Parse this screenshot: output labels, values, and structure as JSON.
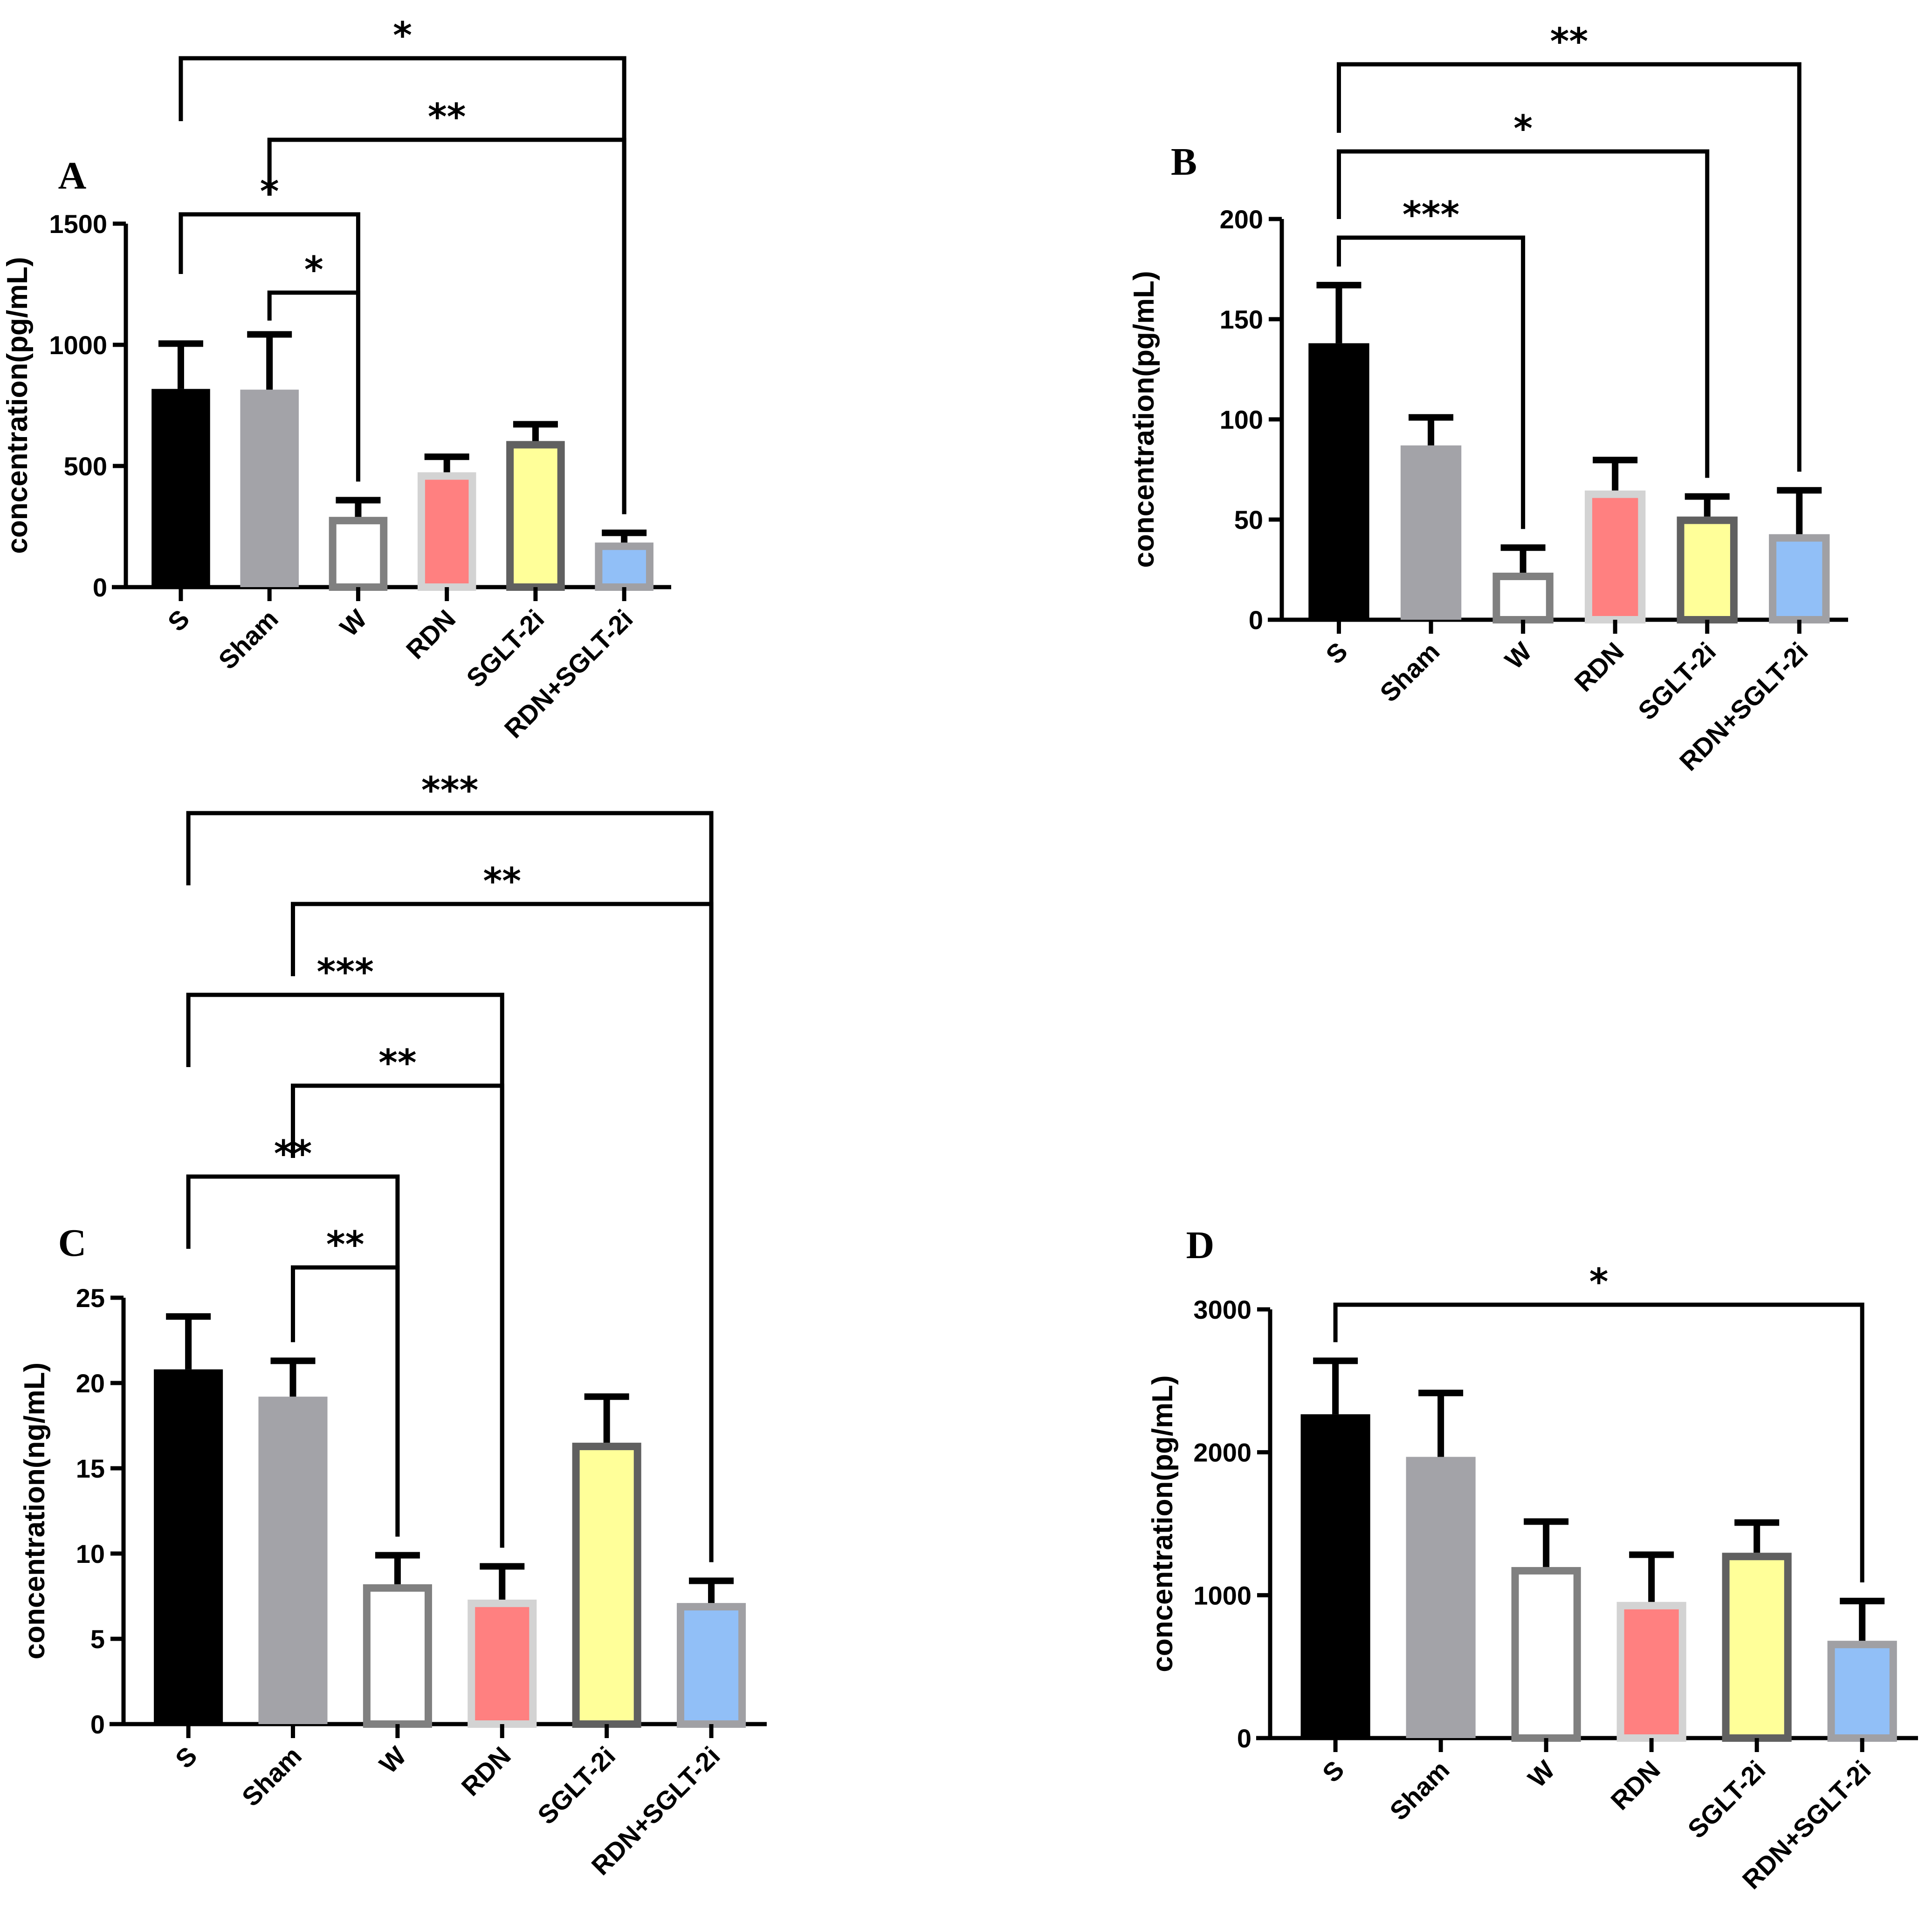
{
  "chart_data": [
    {
      "panel": "A",
      "type": "bar",
      "title": "",
      "xlabel": "",
      "ylabel": "concentration(pg/mL)",
      "ylim": [
        0,
        1500
      ],
      "yticks": [
        0,
        500,
        1000,
        1500
      ],
      "categories": [
        "S",
        "Sham",
        "W",
        "RDN",
        "SGLT-2i",
        "RDN+SGLT-2i"
      ],
      "values": [
        818,
        815,
        290,
        474,
        603,
        184
      ],
      "error_upper": [
        1005,
        1043,
        359,
        538,
        672,
        224
      ],
      "significance": [
        {
          "from": "S",
          "to": "RDN+SGLT-2i",
          "label": "*"
        },
        {
          "from": "Sham",
          "to": "RDN+SGLT-2i",
          "label": "**"
        },
        {
          "from": "S",
          "to": "W",
          "label": "*"
        },
        {
          "from": "Sham",
          "to": "W",
          "label": "*"
        }
      ]
    },
    {
      "panel": "B",
      "type": "bar",
      "title": "",
      "xlabel": "",
      "ylabel": "concentration(pg/mL)",
      "ylim": [
        0,
        200
      ],
      "yticks": [
        0,
        50,
        100,
        150,
        200
      ],
      "categories": [
        "S",
        "Sham",
        "W",
        "RDN",
        "SGLT-2i",
        "RDN+SGLT-2i"
      ],
      "values": [
        138,
        87,
        23.5,
        64.5,
        51.5,
        42.7
      ],
      "error_upper": [
        167,
        101,
        36,
        79.7,
        61.5,
        64.6
      ],
      "significance": [
        {
          "from": "S",
          "to": "RDN+SGLT-2i",
          "label": "**"
        },
        {
          "from": "S",
          "to": "SGLT-2i",
          "label": "*"
        },
        {
          "from": "S",
          "to": "W",
          "label": "***"
        }
      ]
    },
    {
      "panel": "C",
      "type": "bar",
      "title": "",
      "xlabel": "",
      "ylabel": "concentration(ng/mL)",
      "ylim": [
        0,
        25
      ],
      "yticks": [
        0,
        5,
        10,
        15,
        20,
        25
      ],
      "categories": [
        "S",
        "Sham",
        "W",
        "RDN",
        "SGLT-2i",
        "RDN+SGLT-2i"
      ],
      "values": [
        20.8,
        19.2,
        8.2,
        7.3,
        16.5,
        7.1
      ],
      "error_upper": [
        23.9,
        21.3,
        9.9,
        9.25,
        19.2,
        8.4
      ],
      "significance": [
        {
          "from": "S",
          "to": "RDN+SGLT-2i",
          "label": "***"
        },
        {
          "from": "Sham",
          "to": "RDN+SGLT-2i",
          "label": "**"
        },
        {
          "from": "S",
          "to": "RDN",
          "label": "***"
        },
        {
          "from": "Sham",
          "to": "RDN",
          "label": "**"
        },
        {
          "from": "S",
          "to": "W",
          "label": "**"
        },
        {
          "from": "Sham",
          "to": "W",
          "label": "**"
        }
      ]
    },
    {
      "panel": "D",
      "type": "bar",
      "title": "",
      "xlabel": "",
      "ylabel": "concentration(pg/mL)",
      "ylim": [
        0,
        3000
      ],
      "yticks": [
        0,
        1000,
        2000,
        3000
      ],
      "categories": [
        "S",
        "Sham",
        "W",
        "RDN",
        "SGLT-2i",
        "RDN+SGLT-2i"
      ],
      "values": [
        2266,
        1968,
        1197,
        953,
        1297,
        681
      ],
      "error_upper": [
        2640,
        2415,
        1515,
        1283,
        1508,
        959
      ],
      "significance": [
        {
          "from": "S",
          "to": "RDN+SGLT-2i",
          "label": "*"
        }
      ]
    }
  ],
  "bar_styles": [
    {
      "group": "S",
      "fill": "#000000",
      "stroke": "#000000"
    },
    {
      "group": "Sham",
      "fill": "#A3A3A8",
      "stroke": "#A3A3A8"
    },
    {
      "group": "W",
      "fill": "#FFFFFF",
      "stroke": "#808080"
    },
    {
      "group": "RDN",
      "fill": "#FF8080",
      "stroke": "#D3D3D3"
    },
    {
      "group": "SGLT-2i",
      "fill": "#FFFF99",
      "stroke": "#606060"
    },
    {
      "group": "RDN+SGLT-2i",
      "fill": "#91BFF7",
      "stroke": "#A0A0A4"
    }
  ]
}
